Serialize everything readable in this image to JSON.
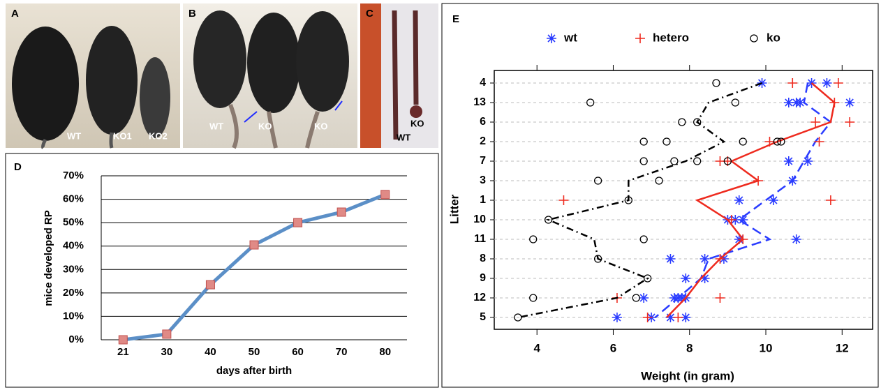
{
  "panels": [
    {
      "label": "A",
      "captions": [
        "WT",
        "KO1",
        "KO2"
      ]
    },
    {
      "label": "B",
      "captions": [
        "WT",
        "KO",
        "KO"
      ]
    },
    {
      "label": "C",
      "captions": [
        "WT",
        "KO"
      ]
    }
  ],
  "chart_data": [
    {
      "label": "D",
      "type": "line",
      "xlabel": "days after birth",
      "ylabel": "mice developed RP",
      "categories": [
        "21",
        "30",
        "40",
        "50",
        "60",
        "70",
        "80"
      ],
      "values": [
        0,
        2.4,
        23.5,
        40.5,
        50,
        54.5,
        62
      ],
      "color": "#5b8fc7",
      "marker_color": "#e08a86",
      "ylim": [
        0,
        70
      ],
      "yticks": [
        {
          "value": 0,
          "label": "0%"
        },
        {
          "value": 10,
          "label": "10%"
        },
        {
          "value": 20,
          "label": "20%"
        },
        {
          "value": 30,
          "label": "30%"
        },
        {
          "value": 40,
          "label": "40%"
        },
        {
          "value": 50,
          "label": "50%"
        },
        {
          "value": 60,
          "label": "60%"
        },
        {
          "value": 70,
          "label": "70%"
        }
      ],
      "grid": true
    },
    {
      "label": "E",
      "type": "scatter",
      "xlabel": "Weight (in gram)",
      "ylabel": "Litter",
      "categories": [
        "4",
        "13",
        "6",
        "2",
        "7",
        "3",
        "1",
        "10",
        "11",
        "8",
        "9",
        "12",
        "5"
      ],
      "xlim": [
        2.88,
        12.8
      ],
      "xticks": [
        4,
        6,
        8,
        10,
        12
      ],
      "grid": true,
      "series": [
        {
          "name": "wt",
          "color": "#2a3cff",
          "marker": "asterisk",
          "line_style": "dashed",
          "x": [
            9.9,
            11.2,
            11.6,
            10.6,
            10.8,
            10.9,
            12.2,
            10.6,
            11.1,
            10.7,
            9.3,
            10.2,
            9.0,
            9.2,
            9.4,
            9.3,
            10.8,
            7.5,
            8.4,
            8.9,
            7.9,
            8.4,
            6.8,
            7.6,
            7.7,
            7.8,
            7.9,
            6.1,
            7.0,
            7.5,
            7.9
          ],
          "y": [
            "4",
            "4",
            "4",
            "13",
            "13",
            "13",
            "13",
            "7",
            "7",
            "3",
            "1",
            "1",
            "10",
            "10",
            "10",
            "11",
            "11",
            "8",
            "8",
            "8",
            "9",
            "9",
            "12",
            "12",
            "12",
            "12",
            "12",
            "5",
            "5",
            "5",
            "5"
          ],
          "line": [
            11.1,
            11.0,
            11.7,
            11.3,
            11.0,
            10.7,
            10.0,
            9.3,
            10.1,
            8.5,
            8.3,
            7.7,
            7.1
          ]
        },
        {
          "name": "hetero",
          "color": "#ee2a1e",
          "marker": "plus",
          "line_style": "solid",
          "x": [
            10.7,
            11.9,
            11.8,
            11.3,
            12.2,
            10.1,
            11.4,
            8.8,
            9.0,
            9.8,
            4.7,
            11.7,
            9.1,
            9.4,
            8.8,
            6.1,
            8.8,
            6.9,
            7.7
          ],
          "y": [
            "4",
            "4",
            "13",
            "6",
            "6",
            "2",
            "2",
            "7",
            "7",
            "3",
            "1",
            "1",
            "10",
            "11",
            "8",
            "12",
            "12",
            "5",
            "5"
          ],
          "line": [
            11.2,
            11.8,
            11.7,
            10.3,
            9.1,
            9.8,
            8.2,
            9.0,
            9.4,
            8.8,
            8.3,
            7.9,
            7.4
          ]
        },
        {
          "name": "ko",
          "color": "#000000",
          "marker": "circle",
          "line_style": "dashdot",
          "x": [
            8.7,
            5.4,
            9.2,
            7.8,
            8.2,
            6.8,
            7.4,
            9.4,
            10.3,
            10.4,
            6.8,
            7.6,
            8.2,
            9.0,
            5.6,
            7.2,
            6.4,
            4.3,
            3.9,
            6.8,
            5.6,
            6.9,
            3.9,
            6.6,
            3.5
          ],
          "y": [
            "4",
            "13",
            "13",
            "6",
            "6",
            "2",
            "2",
            "2",
            "2",
            "2",
            "7",
            "7",
            "7",
            "7",
            "3",
            "3",
            "1",
            "10",
            "11",
            "11",
            "8",
            "9",
            "12",
            "12",
            "5"
          ],
          "line": [
            9.9,
            8.5,
            8.2,
            8.9,
            7.9,
            6.4,
            6.4,
            4.3,
            5.5,
            5.6,
            6.9,
            6.1,
            3.5
          ]
        }
      ]
    }
  ]
}
